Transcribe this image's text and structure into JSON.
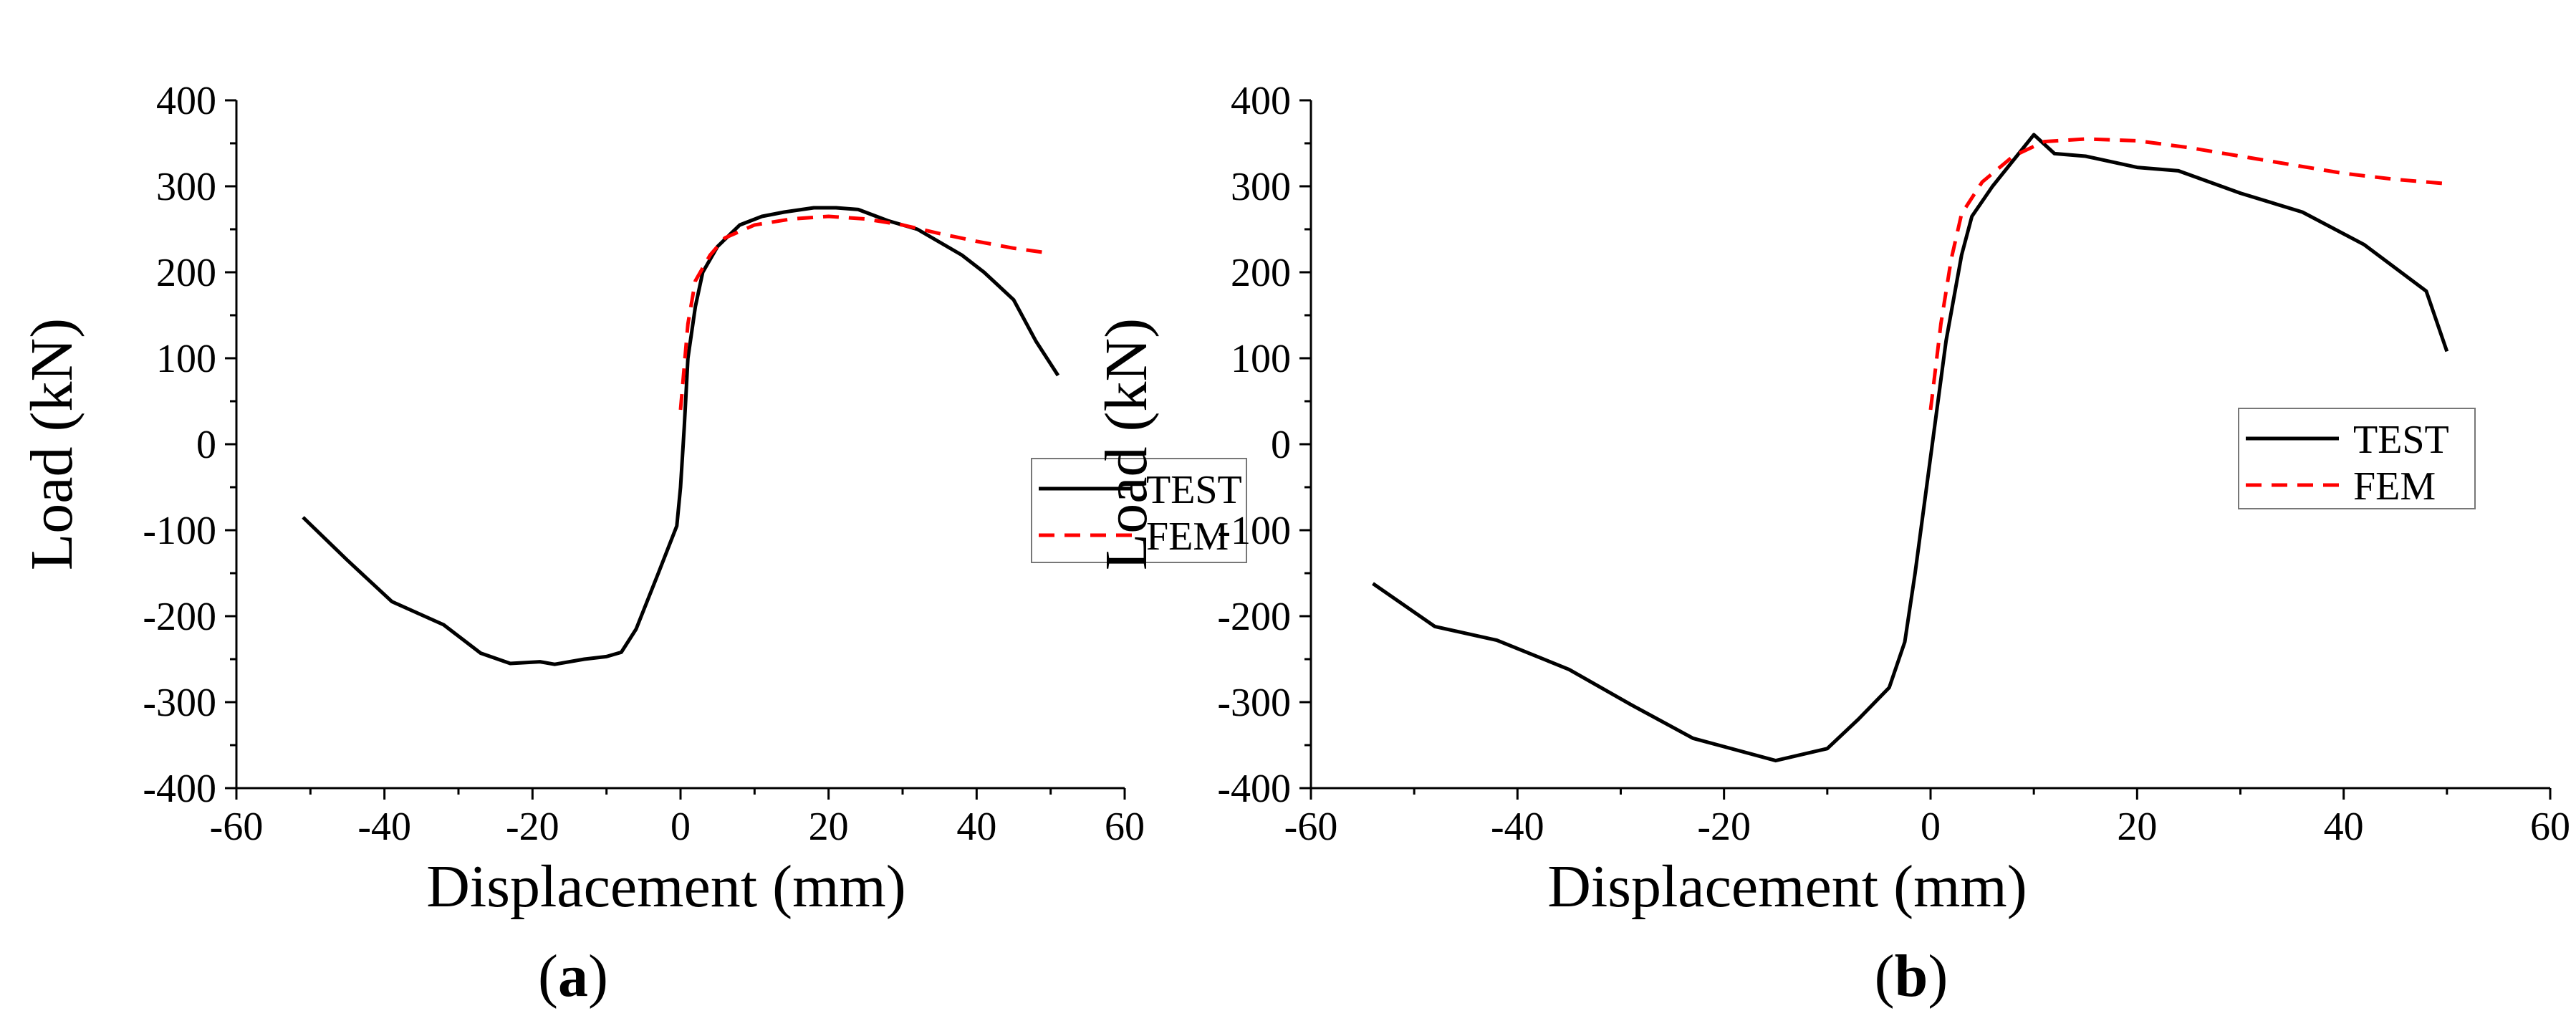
{
  "figure": {
    "panel_a_caption": {
      "open": "(",
      "letter": "a",
      "close": ")"
    },
    "panel_b_caption": {
      "open": "(",
      "letter": "b",
      "close": ")"
    }
  },
  "chart_data": [
    {
      "type": "line",
      "panel": "a",
      "xlabel": "Displacement (mm)",
      "ylabel": "Load (kN)",
      "xlim": [
        -60,
        60
      ],
      "ylim": [
        -400,
        400
      ],
      "xticks": [
        -60,
        -40,
        -20,
        0,
        20,
        40,
        60
      ],
      "yticks": [
        -400,
        -300,
        -200,
        -100,
        0,
        100,
        200,
        300,
        400
      ],
      "legend": {
        "position": "right-middle",
        "entries": [
          "TEST",
          "FEM"
        ]
      },
      "series": [
        {
          "name": "TEST",
          "color": "#000000",
          "style": "solid",
          "points": [
            [
              -51,
              -85
            ],
            [
              -45,
              -135
            ],
            [
              -39,
              -183
            ],
            [
              -32,
              -210
            ],
            [
              -27,
              -243
            ],
            [
              -23,
              -255
            ],
            [
              -19,
              -253
            ],
            [
              -17,
              -256
            ],
            [
              -13,
              -250
            ],
            [
              -10,
              -247
            ],
            [
              -8,
              -242
            ],
            [
              -6,
              -215
            ],
            [
              -3,
              -150
            ],
            [
              -0.5,
              -95
            ],
            [
              0,
              -50
            ],
            [
              0.5,
              20
            ],
            [
              1,
              100
            ],
            [
              2,
              160
            ],
            [
              3,
              200
            ],
            [
              5,
              230
            ],
            [
              8,
              255
            ],
            [
              11,
              265
            ],
            [
              14,
              270
            ],
            [
              18,
              275
            ],
            [
              21,
              275
            ],
            [
              24,
              273
            ],
            [
              28,
              260
            ],
            [
              32,
              250
            ],
            [
              35,
              235
            ],
            [
              38,
              220
            ],
            [
              41,
              200
            ],
            [
              45,
              168
            ],
            [
              48,
              120
            ],
            [
              51,
              80
            ]
          ]
        },
        {
          "name": "FEM",
          "color": "#ff0000",
          "style": "dashed",
          "points": [
            [
              0,
              40
            ],
            [
              1,
              140
            ],
            [
              2,
              190
            ],
            [
              4,
              220
            ],
            [
              6,
              240
            ],
            [
              10,
              255
            ],
            [
              15,
              262
            ],
            [
              20,
              265
            ],
            [
              25,
              262
            ],
            [
              30,
              255
            ],
            [
              35,
              245
            ],
            [
              40,
              236
            ],
            [
              45,
              228
            ],
            [
              50,
              222
            ]
          ]
        }
      ]
    },
    {
      "type": "line",
      "panel": "b",
      "xlabel": "Displacement (mm)",
      "ylabel": "Load (kN)",
      "xlim": [
        -60,
        60
      ],
      "ylim": [
        -400,
        400
      ],
      "xticks": [
        -60,
        -40,
        -20,
        0,
        20,
        40,
        60
      ],
      "yticks": [
        -400,
        -300,
        -200,
        -100,
        0,
        100,
        200,
        300,
        400
      ],
      "legend": {
        "position": "right-middle",
        "entries": [
          "TEST",
          "FEM"
        ]
      },
      "series": [
        {
          "name": "TEST",
          "color": "#000000",
          "style": "solid",
          "points": [
            [
              -54,
              -162
            ],
            [
              -48,
              -212
            ],
            [
              -42,
              -228
            ],
            [
              -35,
              -262
            ],
            [
              -29,
              -303
            ],
            [
              -23,
              -342
            ],
            [
              -15,
              -368
            ],
            [
              -10,
              -354
            ],
            [
              -7,
              -320
            ],
            [
              -4,
              -283
            ],
            [
              -2.5,
              -230
            ],
            [
              -1.5,
              -150
            ],
            [
              -0.5,
              -60
            ],
            [
              0.5,
              30
            ],
            [
              1.5,
              120
            ],
            [
              3,
              220
            ],
            [
              4,
              265
            ],
            [
              6,
              300
            ],
            [
              9,
              345
            ],
            [
              10,
              360
            ],
            [
              12,
              338
            ],
            [
              15,
              335
            ],
            [
              20,
              322
            ],
            [
              24,
              318
            ],
            [
              30,
              292
            ],
            [
              36,
              270
            ],
            [
              42,
              232
            ],
            [
              48,
              178
            ],
            [
              50,
              108
            ]
          ]
        },
        {
          "name": "FEM",
          "color": "#ff0000",
          "style": "dashed",
          "points": [
            [
              0,
              40
            ],
            [
              1,
              140
            ],
            [
              2,
              215
            ],
            [
              3,
              268
            ],
            [
              5,
              305
            ],
            [
              8,
              335
            ],
            [
              11,
              352
            ],
            [
              15,
              355
            ],
            [
              20,
              353
            ],
            [
              25,
              345
            ],
            [
              30,
              335
            ],
            [
              35,
              325
            ],
            [
              40,
              315
            ],
            [
              45,
              308
            ],
            [
              50,
              303
            ]
          ]
        }
      ]
    }
  ]
}
